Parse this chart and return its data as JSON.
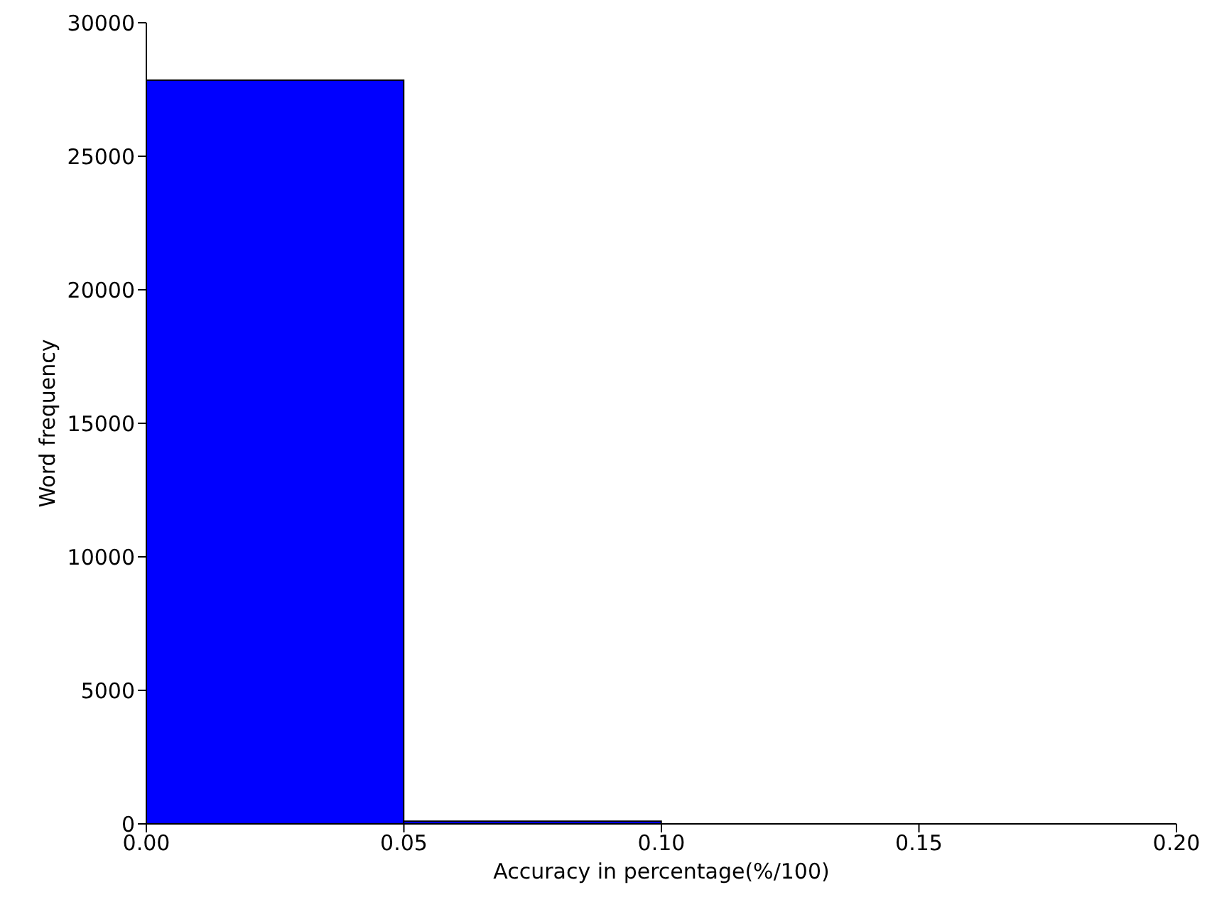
{
  "chart_data": {
    "type": "histogram",
    "xlabel": "Accuracy in percentage(%/100)",
    "ylabel": "Word frequency",
    "bins": [
      0,
      0.05,
      0.1
    ],
    "values": [
      27850,
      100
    ],
    "color": "#0000ff",
    "xlim": [
      0,
      0.2
    ],
    "xticks": [
      {
        "value": 0,
        "label": "0.00"
      },
      {
        "value": 0.05,
        "label": "0.05"
      },
      {
        "value": 0.1,
        "label": "0.10"
      },
      {
        "value": 0.15,
        "label": "0.15"
      },
      {
        "value": 0.2,
        "label": "0.20"
      }
    ],
    "ylim": [
      0,
      30000
    ],
    "yticks": [
      0,
      5000,
      10000,
      15000,
      20000,
      25000,
      30000
    ],
    "grid": false
  }
}
